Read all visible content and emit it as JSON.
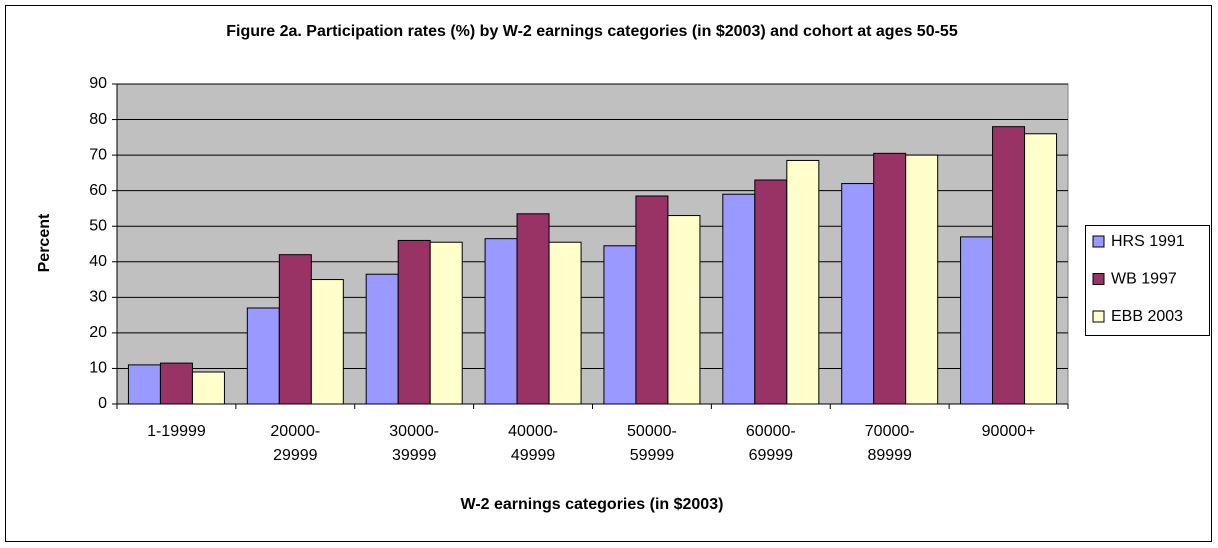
{
  "chart_data": {
    "type": "bar",
    "title": "Figure 2a. Participation rates (%) by W-2 earnings categories (in $2003) and cohort at ages 50-55",
    "x_label": "W-2 earnings categories (in $2003)",
    "y_label": "Percent",
    "categories": [
      "1-19999",
      "20000-29999",
      "30000-39999",
      "40000-49999",
      "50000-59999",
      "60000-69999",
      "70000-89999",
      "90000+"
    ],
    "series": [
      {
        "name": "HRS 1991",
        "color": "#9999ff",
        "values": [
          11,
          27,
          36.5,
          46.5,
          44.5,
          59,
          62,
          47
        ]
      },
      {
        "name": "WB 1997",
        "color": "#993366",
        "values": [
          11.5,
          42,
          46,
          53.5,
          58.5,
          63,
          70.5,
          78
        ]
      },
      {
        "name": "EBB 2003",
        "color": "#ffffcc",
        "values": [
          9,
          35,
          45.5,
          45.5,
          53,
          68.5,
          70,
          76
        ]
      }
    ],
    "ylim": [
      0,
      90
    ],
    "yticks": [
      0,
      10,
      20,
      30,
      40,
      50,
      60,
      70,
      80,
      90
    ],
    "grid": true,
    "legend": "right"
  }
}
